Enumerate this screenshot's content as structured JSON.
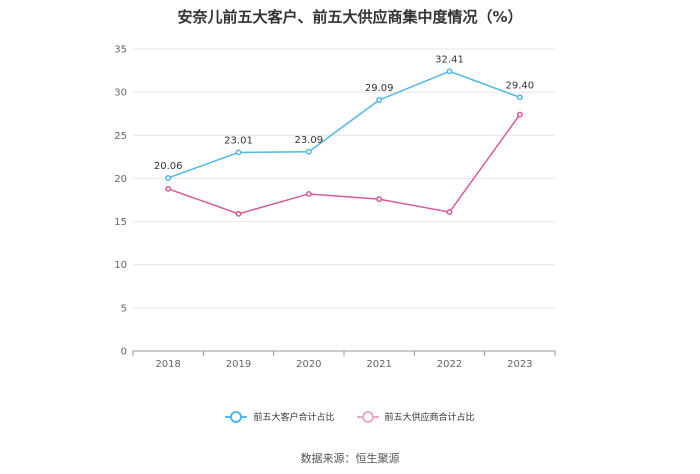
{
  "chart_data": {
    "type": "line",
    "title": "安奈儿前五大客户、前五大供应商集中度情况（%）",
    "categories": [
      "2018",
      "2019",
      "2020",
      "2021",
      "2022",
      "2023"
    ],
    "ylim": [
      0,
      35
    ],
    "yticks": [
      0,
      5,
      10,
      15,
      20,
      25,
      30,
      35
    ],
    "series": [
      {
        "name": "前五大客户合计占比",
        "color": "#4db8ea",
        "values": [
          20.06,
          23.01,
          23.09,
          29.09,
          32.41,
          29.4
        ],
        "labels": [
          "20.06",
          "23.01",
          "23.09",
          "29.09",
          "32.41",
          "29.40"
        ]
      },
      {
        "name": "前五大供应商合计占比",
        "color": "#d9589c",
        "values": [
          18.8,
          15.9,
          18.2,
          17.6,
          16.1,
          27.4
        ]
      }
    ],
    "legend_position": "bottom",
    "source": "数据来源：恒生聚源"
  }
}
